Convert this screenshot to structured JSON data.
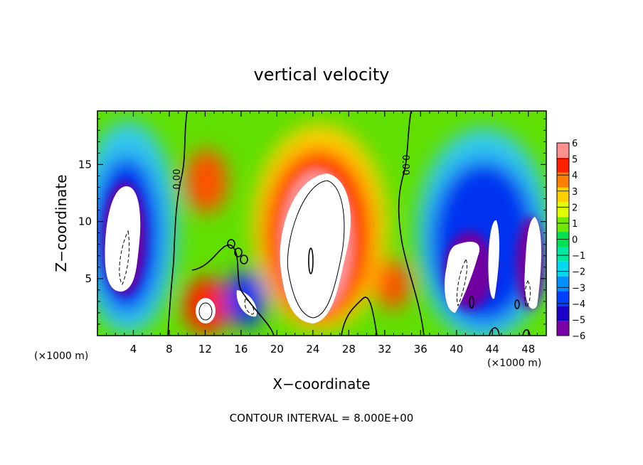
{
  "chart_data": {
    "type": "heatmap",
    "title": "vertical velocity",
    "xlabel": "X−coordinate",
    "ylabel": "Z−coordinate",
    "x_unit": "(×1000 m)",
    "y_unit": "(×1000 m)",
    "xlim": [
      0,
      50
    ],
    "ylim": [
      0,
      19.7
    ],
    "x_ticks": [
      4,
      8,
      12,
      16,
      20,
      24,
      28,
      32,
      36,
      40,
      44,
      48
    ],
    "y_ticks": [
      5,
      10,
      15
    ],
    "colorbar": {
      "min": -6,
      "max": 6,
      "ticks": [
        "6",
        "5",
        "4",
        "3",
        "2",
        "1",
        "0",
        "−1",
        "−2",
        "−3",
        "−4",
        "−5",
        "−6"
      ],
      "colors": [
        "#7a00a8",
        "#1a00c8",
        "#0040ff",
        "#0090ff",
        "#00d8f0",
        "#00e8a0",
        "#00e050",
        "#70e800",
        "#e0ff00",
        "#ffd000",
        "#ff8000",
        "#ff2000",
        "#ff9090"
      ]
    },
    "contour_labels": [
      "0.00",
      "0.00"
    ],
    "annotation": "CONTOUR INTERVAL = 8.000E+00",
    "features": [
      {
        "x": 24.5,
        "z": 9.0,
        "value": 7.5
      },
      {
        "x": 12.0,
        "z": 2.2,
        "value": 6.5
      },
      {
        "x": 12.2,
        "z": 13.5,
        "value": 3.5
      },
      {
        "x": 32.5,
        "z": 4.5,
        "value": 3.0
      },
      {
        "x": 4.5,
        "z": 8.5,
        "value": -7.5
      },
      {
        "x": 16.2,
        "z": 3.0,
        "value": -6.5
      },
      {
        "x": 40.5,
        "z": 6.5,
        "value": -7.0
      },
      {
        "x": 44.5,
        "z": 8.0,
        "value": -7.0
      },
      {
        "x": 48.3,
        "z": 7.5,
        "value": -7.0
      }
    ]
  }
}
